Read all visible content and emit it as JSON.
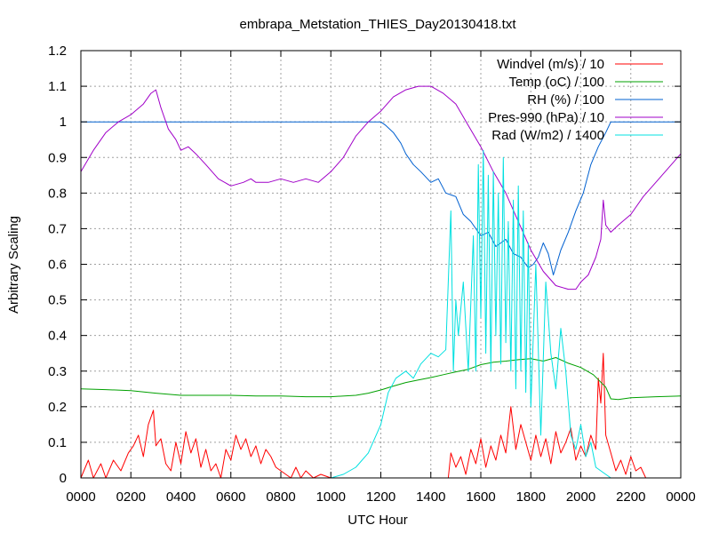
{
  "chart_data": {
    "type": "line",
    "title": "embrapa_Metstation_THIES_Day20130418.txt",
    "xlabel": "UTC Hour",
    "ylabel": "Arbitrary Scaling",
    "xlim": [
      0,
      24
    ],
    "ylim": [
      0,
      1.2
    ],
    "x_ticks": [
      {
        "v": 0,
        "label": "0000"
      },
      {
        "v": 2,
        "label": "0200"
      },
      {
        "v": 4,
        "label": "0400"
      },
      {
        "v": 6,
        "label": "0600"
      },
      {
        "v": 8,
        "label": "0800"
      },
      {
        "v": 10,
        "label": "1000"
      },
      {
        "v": 12,
        "label": "1200"
      },
      {
        "v": 14,
        "label": "1400"
      },
      {
        "v": 16,
        "label": "1600"
      },
      {
        "v": 18,
        "label": "1800"
      },
      {
        "v": 20,
        "label": "2000"
      },
      {
        "v": 22,
        "label": "2200"
      },
      {
        "v": 24,
        "label": "0000"
      }
    ],
    "y_ticks": [
      {
        "v": 0,
        "label": "0"
      },
      {
        "v": 0.1,
        "label": "0.1"
      },
      {
        "v": 0.2,
        "label": "0.2"
      },
      {
        "v": 0.3,
        "label": "0.3"
      },
      {
        "v": 0.4,
        "label": "0.4"
      },
      {
        "v": 0.5,
        "label": "0.5"
      },
      {
        "v": 0.6,
        "label": "0.6"
      },
      {
        "v": 0.7,
        "label": "0.7"
      },
      {
        "v": 0.8,
        "label": "0.8"
      },
      {
        "v": 0.9,
        "label": "0.9"
      },
      {
        "v": 1.0,
        "label": "1"
      },
      {
        "v": 1.1,
        "label": "1.1"
      },
      {
        "v": 1.2,
        "label": "1.2"
      }
    ],
    "grid": true,
    "legend_position": "top-right",
    "series": [
      {
        "name": "Windvel (m/s) / 10",
        "color": "#ff0000",
        "x": [
          0,
          0.3,
          0.5,
          0.8,
          1.0,
          1.3,
          1.6,
          1.9,
          2.1,
          2.3,
          2.5,
          2.7,
          2.9,
          3.0,
          3.2,
          3.4,
          3.6,
          3.8,
          4.0,
          4.2,
          4.4,
          4.6,
          4.8,
          5.0,
          5.2,
          5.4,
          5.6,
          5.8,
          6.0,
          6.2,
          6.4,
          6.6,
          6.8,
          7.0,
          7.2,
          7.4,
          7.6,
          7.8,
          8.0,
          8.2,
          8.4,
          8.6,
          8.8,
          9.0,
          9.3,
          9.6,
          10.0,
          11.0,
          12.0,
          13.0,
          14.0,
          14.7,
          14.8,
          15.0,
          15.2,
          15.4,
          15.6,
          15.8,
          16.0,
          16.2,
          16.4,
          16.6,
          16.8,
          17.0,
          17.2,
          17.4,
          17.6,
          17.8,
          18.0,
          18.2,
          18.4,
          18.6,
          18.8,
          19.0,
          19.2,
          19.4,
          19.6,
          19.8,
          20.0,
          20.2,
          20.4,
          20.6,
          20.7,
          20.8,
          20.9,
          21.0,
          21.2,
          21.4,
          21.6,
          21.8,
          22.0,
          22.2,
          22.4,
          22.6,
          23.0,
          24.0
        ],
        "y": [
          0.0,
          0.05,
          0.0,
          0.04,
          0.0,
          0.05,
          0.02,
          0.07,
          0.09,
          0.12,
          0.06,
          0.15,
          0.19,
          0.09,
          0.11,
          0.04,
          0.02,
          0.1,
          0.04,
          0.13,
          0.07,
          0.11,
          0.03,
          0.08,
          0.02,
          0.04,
          0.0,
          0.08,
          0.05,
          0.12,
          0.08,
          0.11,
          0.06,
          0.09,
          0.04,
          0.08,
          0.06,
          0.03,
          0.02,
          0.01,
          0.0,
          0.03,
          0.0,
          0.02,
          0.0,
          0.01,
          0.0,
          0.0,
          0.0,
          0.0,
          0.0,
          0.0,
          0.07,
          0.03,
          0.06,
          0.01,
          0.08,
          0.04,
          0.11,
          0.03,
          0.09,
          0.05,
          0.12,
          0.07,
          0.2,
          0.08,
          0.15,
          0.1,
          0.05,
          0.12,
          0.06,
          0.11,
          0.04,
          0.13,
          0.07,
          0.1,
          0.14,
          0.05,
          0.09,
          0.06,
          0.12,
          0.08,
          0.28,
          0.21,
          0.35,
          0.12,
          0.07,
          0.02,
          0.05,
          0.01,
          0.06,
          0.02,
          0.03,
          0.0,
          0.0,
          0.0
        ]
      },
      {
        "name": "Temp (oC) / 100",
        "color": "#00a000",
        "x": [
          0,
          1,
          2,
          3,
          4,
          5,
          6,
          7,
          8,
          9,
          10,
          11,
          11.5,
          12,
          12.5,
          13,
          13.5,
          14,
          14.5,
          15,
          15.5,
          16,
          16.5,
          17,
          17.5,
          18,
          18.5,
          19,
          19.5,
          20,
          20.5,
          21,
          21.2,
          21.5,
          22,
          23,
          24
        ],
        "y": [
          0.25,
          0.248,
          0.245,
          0.238,
          0.232,
          0.232,
          0.232,
          0.23,
          0.23,
          0.228,
          0.228,
          0.232,
          0.238,
          0.247,
          0.258,
          0.268,
          0.275,
          0.282,
          0.29,
          0.298,
          0.305,
          0.318,
          0.325,
          0.328,
          0.332,
          0.335,
          0.328,
          0.338,
          0.322,
          0.31,
          0.29,
          0.255,
          0.222,
          0.22,
          0.225,
          0.228,
          0.23
        ]
      },
      {
        "name": "RH (%) / 100",
        "color": "#0060d0",
        "x": [
          0,
          6,
          12,
          12.2,
          12.5,
          12.8,
          13.0,
          13.3,
          13.6,
          14.0,
          14.3,
          14.6,
          15.0,
          15.3,
          15.6,
          16.0,
          16.3,
          16.6,
          17.0,
          17.3,
          17.6,
          17.9,
          18.1,
          18.3,
          18.5,
          18.7,
          18.9,
          19.2,
          19.5,
          19.8,
          20.1,
          20.4,
          20.7,
          21.0,
          21.2,
          24
        ],
        "y": [
          1.0,
          1.0,
          1.0,
          0.99,
          0.97,
          0.94,
          0.91,
          0.88,
          0.86,
          0.83,
          0.84,
          0.8,
          0.79,
          0.74,
          0.72,
          0.68,
          0.69,
          0.65,
          0.67,
          0.63,
          0.62,
          0.59,
          0.6,
          0.62,
          0.66,
          0.63,
          0.57,
          0.64,
          0.69,
          0.75,
          0.8,
          0.88,
          0.93,
          0.97,
          1.0,
          1.0
        ]
      },
      {
        "name": "Pres-990 (hPa) / 10",
        "color": "#a000c8",
        "x": [
          0,
          0.5,
          1.0,
          1.5,
          2.0,
          2.5,
          2.8,
          3.0,
          3.2,
          3.5,
          3.8,
          4.0,
          4.3,
          4.6,
          5.0,
          5.5,
          6.0,
          6.5,
          6.8,
          7.0,
          7.5,
          8.0,
          8.5,
          9.0,
          9.5,
          10.0,
          10.5,
          11.0,
          11.5,
          12.0,
          12.5,
          13.0,
          13.5,
          14.0,
          14.5,
          15.0,
          15.5,
          16.0,
          16.5,
          17.0,
          17.5,
          18.0,
          18.5,
          19.0,
          19.5,
          19.8,
          20.0,
          20.3,
          20.6,
          20.8,
          20.9,
          21.0,
          21.2,
          21.5,
          22.0,
          22.5,
          23.0,
          23.5,
          24.0
        ],
        "y": [
          0.86,
          0.92,
          0.97,
          1.0,
          1.02,
          1.05,
          1.08,
          1.09,
          1.04,
          0.98,
          0.95,
          0.92,
          0.93,
          0.91,
          0.88,
          0.84,
          0.82,
          0.83,
          0.84,
          0.83,
          0.83,
          0.84,
          0.83,
          0.84,
          0.83,
          0.86,
          0.9,
          0.96,
          1.0,
          1.03,
          1.07,
          1.09,
          1.1,
          1.1,
          1.08,
          1.05,
          0.99,
          0.93,
          0.86,
          0.8,
          0.72,
          0.64,
          0.58,
          0.54,
          0.53,
          0.53,
          0.55,
          0.57,
          0.62,
          0.67,
          0.78,
          0.71,
          0.69,
          0.71,
          0.74,
          0.79,
          0.83,
          0.87,
          0.91
        ]
      },
      {
        "name": "Rad (W/m2) / 1400",
        "color": "#00e0e0",
        "x": [
          0,
          8,
          9,
          10,
          10.5,
          11,
          11.5,
          12.0,
          12.3,
          12.6,
          13.0,
          13.3,
          13.6,
          14.0,
          14.3,
          14.6,
          14.8,
          14.9,
          15.0,
          15.1,
          15.3,
          15.5,
          15.7,
          15.8,
          15.9,
          16.0,
          16.1,
          16.2,
          16.3,
          16.4,
          16.5,
          16.6,
          16.7,
          16.8,
          16.9,
          17.0,
          17.1,
          17.2,
          17.3,
          17.4,
          17.5,
          17.6,
          17.7,
          17.8,
          17.9,
          18.0,
          18.2,
          18.4,
          18.6,
          18.8,
          19.0,
          19.2,
          19.4,
          19.6,
          19.8,
          20.0,
          20.2,
          20.4,
          20.6,
          20.8,
          21.0,
          21.2,
          22.0,
          23.0,
          24.0
        ],
        "y": [
          0.0,
          0.0,
          0.0,
          0.0,
          0.01,
          0.03,
          0.07,
          0.15,
          0.24,
          0.28,
          0.3,
          0.28,
          0.32,
          0.35,
          0.34,
          0.36,
          0.75,
          0.3,
          0.5,
          0.4,
          0.55,
          0.3,
          0.68,
          0.3,
          0.88,
          0.45,
          0.92,
          0.35,
          0.85,
          0.3,
          0.86,
          0.4,
          0.8,
          0.32,
          0.9,
          0.38,
          0.72,
          0.3,
          0.78,
          0.25,
          0.82,
          0.3,
          0.75,
          0.24,
          0.66,
          0.2,
          0.6,
          0.12,
          0.55,
          0.35,
          0.25,
          0.42,
          0.3,
          0.12,
          0.08,
          0.15,
          0.06,
          0.1,
          0.03,
          0.02,
          0.01,
          0.0,
          0.0,
          0.0,
          0.0
        ]
      }
    ]
  }
}
